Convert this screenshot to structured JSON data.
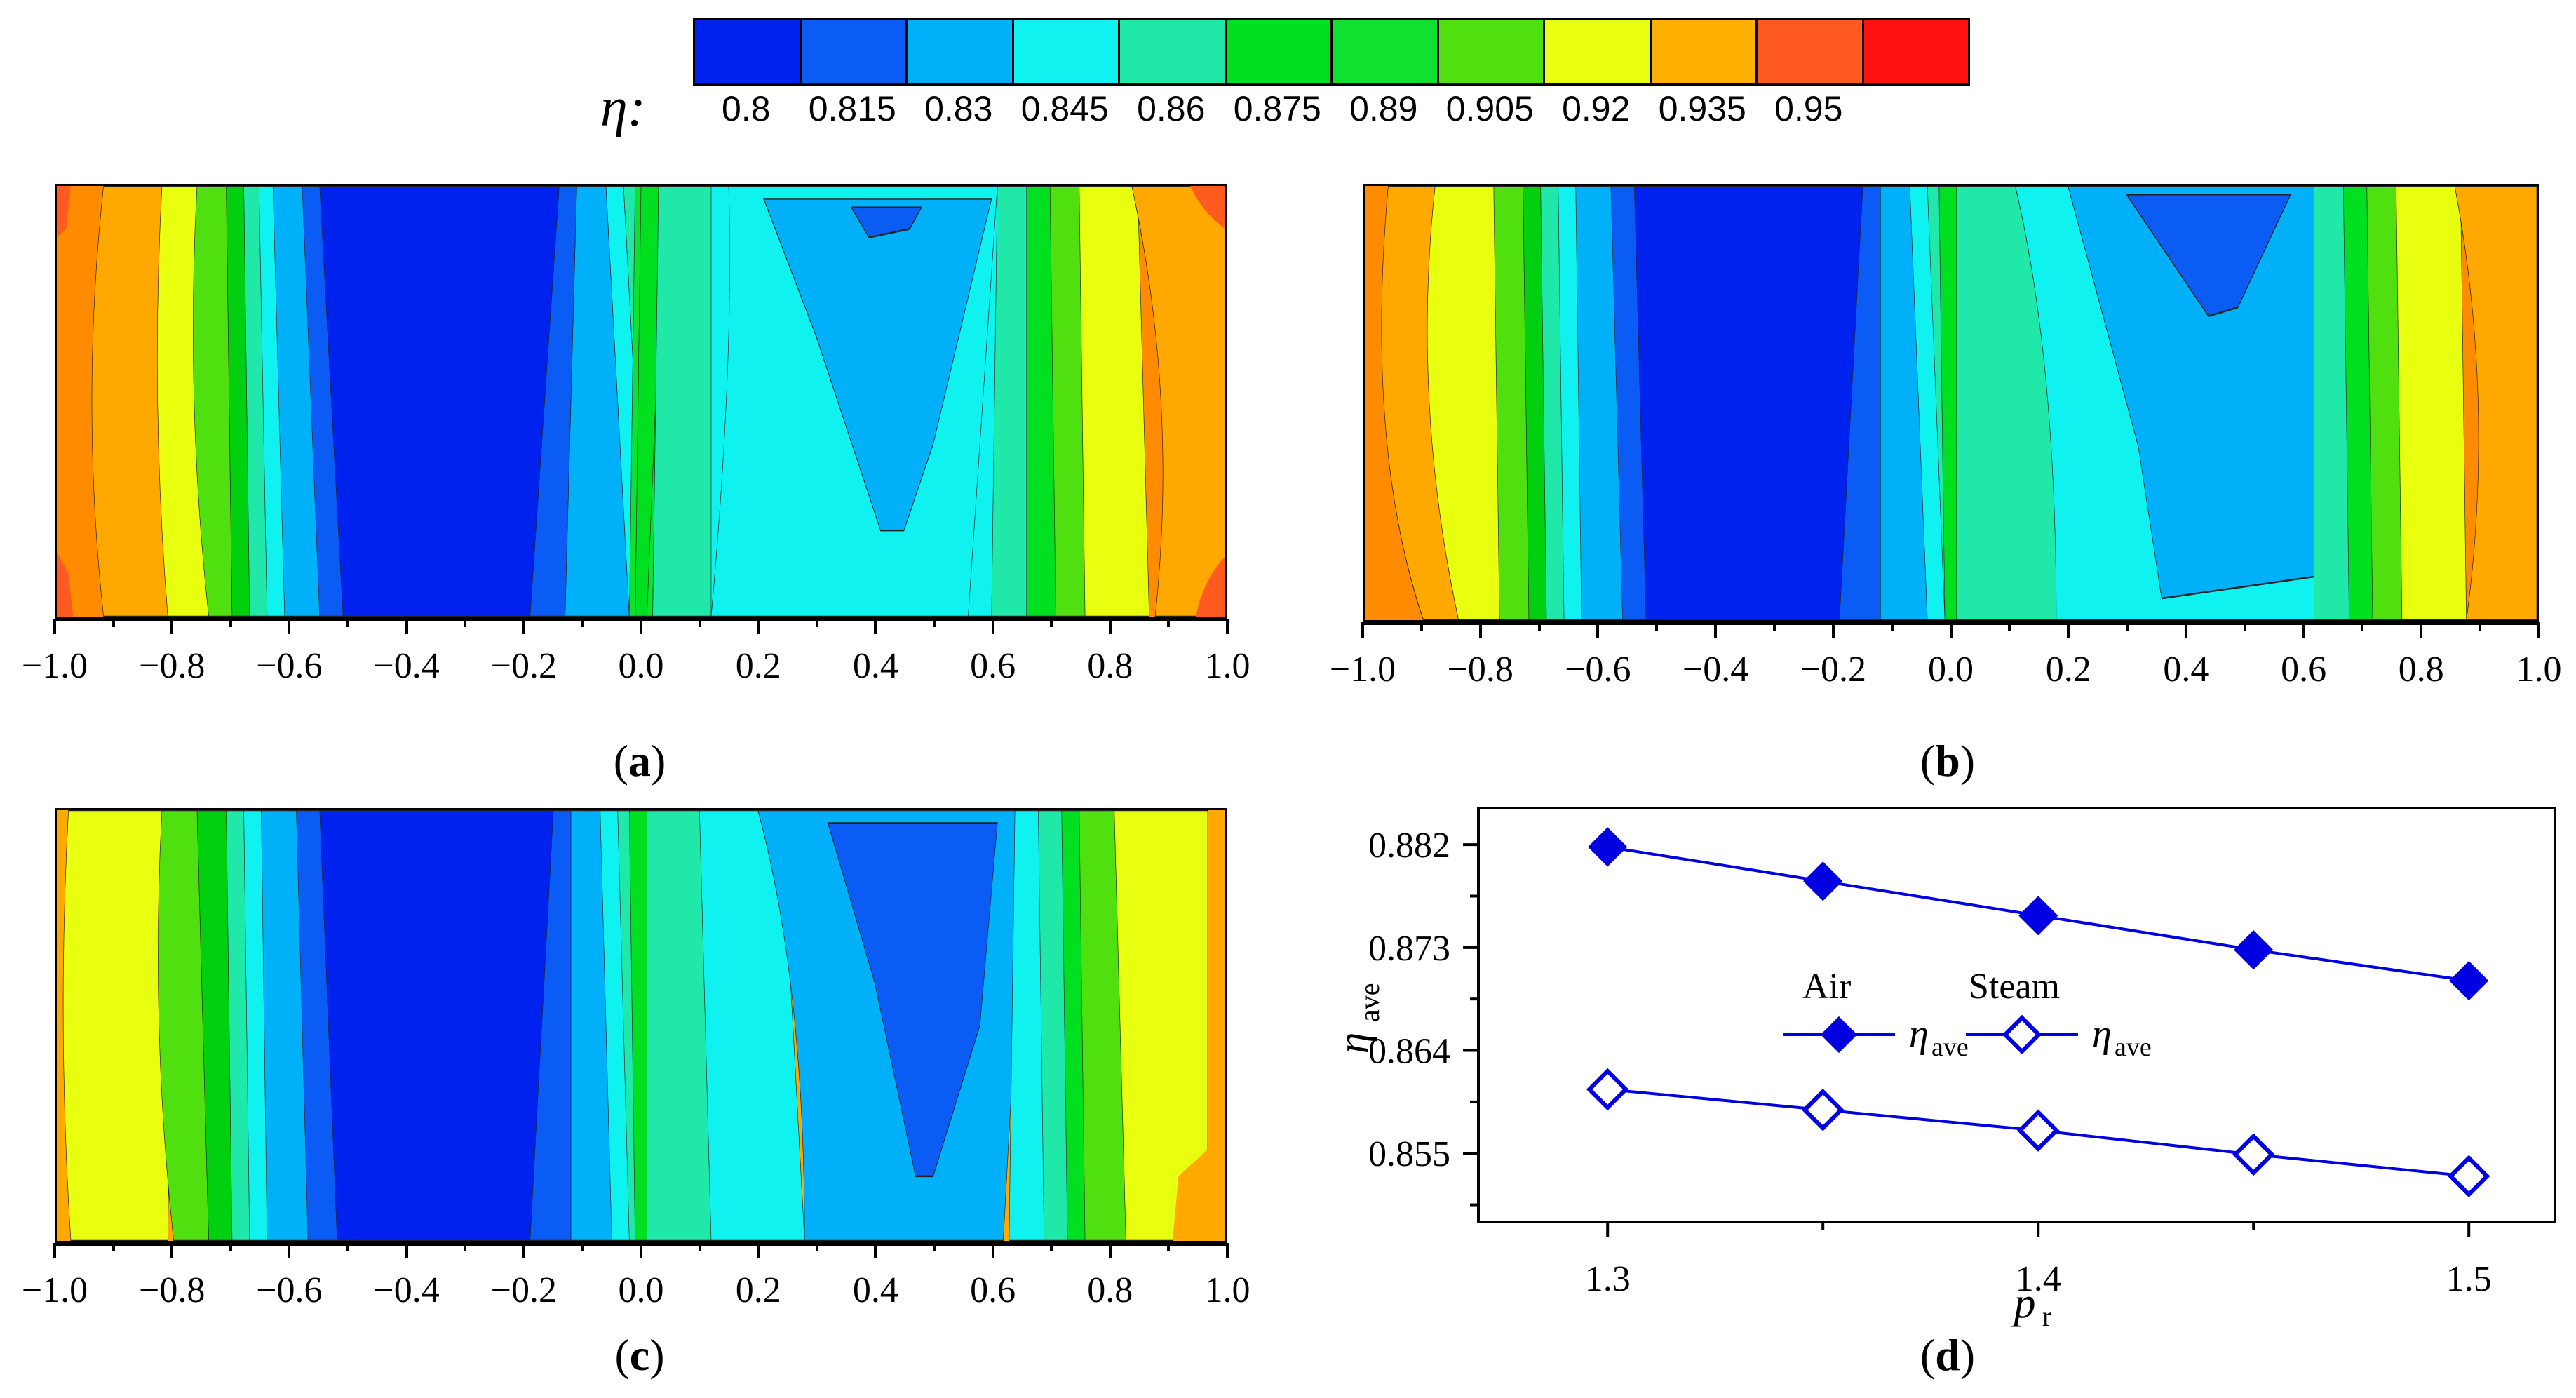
{
  "colorbar": {
    "symbol": "η:",
    "colors": [
      "#0022ee",
      "#0a5cf5",
      "#00b0f8",
      "#10f2f0",
      "#20e8a8",
      "#00e020",
      "#10e030",
      "#50e010",
      "#e8ff10",
      "#ffb000",
      "#ff5a20",
      "#ff1010"
    ],
    "ticks": [
      "0.8",
      "0.815",
      "0.83",
      "0.845",
      "0.86",
      "0.875",
      "0.89",
      "0.905",
      "0.92",
      "0.935",
      "0.95"
    ]
  },
  "contour_panels": {
    "x_ticks": [
      "-1.0",
      "-0.8",
      "-0.6",
      "-0.4",
      "-0.2",
      "0.0",
      "0.2",
      "0.4",
      "0.6",
      "0.8",
      "1.0"
    ],
    "captions": [
      "a",
      "b",
      "c"
    ]
  },
  "chart_data": {
    "type": "line",
    "caption": "d",
    "xlabel": "p",
    "xlabel_sub": "r",
    "ylabel": "η",
    "ylabel_sub": "ave",
    "xlim": [
      1.27,
      1.52
    ],
    "ylim": [
      0.849,
      0.8852
    ],
    "x_ticks": [
      "1.3",
      "1.4",
      "1.5"
    ],
    "x_tick_values": [
      1.3,
      1.4,
      1.5
    ],
    "y_ticks": [
      "0.855",
      "0.864",
      "0.873",
      "0.882"
    ],
    "y_tick_values": [
      0.855,
      0.864,
      0.873,
      0.882
    ],
    "x": [
      1.3,
      1.35,
      1.4,
      1.45,
      1.5
    ],
    "series": [
      {
        "name": "Air",
        "legend_label": "η",
        "legend_sub": "ave",
        "marker": "filled-diamond",
        "values": [
          0.8818,
          0.8788,
          0.8758,
          0.8728,
          0.8701
        ]
      },
      {
        "name": "Steam",
        "legend_label": "η",
        "legend_sub": "ave",
        "marker": "open-diamond",
        "values": [
          0.8606,
          0.8588,
          0.857,
          0.8549,
          0.853
        ]
      }
    ],
    "color": "#0000e0"
  }
}
